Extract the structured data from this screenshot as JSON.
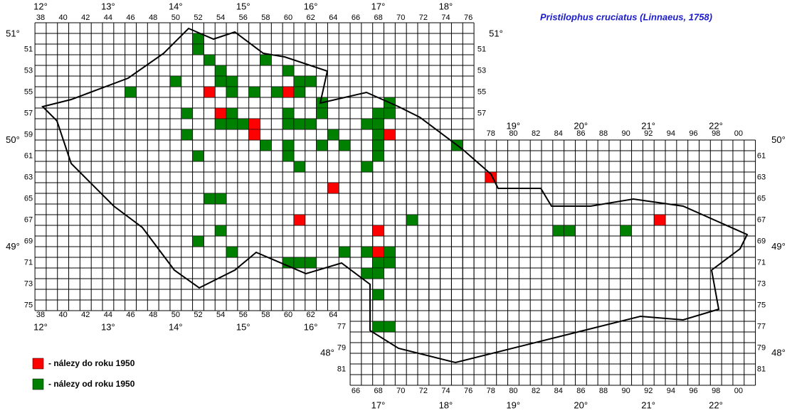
{
  "title": "Pristilophus cruciatus (Linnaeus, 1758)",
  "column_labels_top_west": [
    38,
    40,
    42,
    44,
    46,
    48,
    50,
    52,
    54,
    56,
    58,
    60,
    62,
    64,
    66,
    68,
    70,
    72,
    74,
    76
  ],
  "column_labels_bottom_west": [
    38,
    40,
    42,
    44,
    46,
    48,
    50,
    52,
    54,
    56,
    58,
    60,
    62,
    64
  ],
  "column_labels_top_east": [
    78,
    80,
    82,
    84,
    86,
    88,
    90,
    92,
    94,
    96,
    98,
    {
      "value": 100,
      "label": "00"
    }
  ],
  "column_labels_bottom_east": [
    66,
    68,
    70,
    72,
    74,
    76,
    78,
    80,
    82,
    84,
    86,
    88,
    90,
    92,
    94,
    96,
    98,
    {
      "value": 100,
      "label": "00"
    }
  ],
  "row_labels_left_west": [
    51,
    53,
    55,
    57,
    59,
    61,
    63,
    65,
    67,
    69,
    71,
    73,
    75
  ],
  "row_labels_right_west": [
    51,
    53,
    55,
    57
  ],
  "row_labels_left_east": [
    77,
    79,
    81
  ],
  "row_labels_right_east": [
    61,
    63,
    65,
    67,
    69,
    71,
    73,
    75,
    77,
    79,
    81
  ],
  "longitude_top_west": [
    {
      "value": 12,
      "label": "12°"
    },
    {
      "value": 13,
      "label": "13°"
    },
    {
      "value": 14,
      "label": "14°"
    },
    {
      "value": 15,
      "label": "15°"
    },
    {
      "value": 16,
      "label": "16°"
    },
    {
      "value": 17,
      "label": "17°"
    },
    {
      "value": 18,
      "label": "18°"
    }
  ],
  "longitude_bottom_west": [
    {
      "value": 12,
      "label": "12°"
    },
    {
      "value": 13,
      "label": "13°"
    },
    {
      "value": 14,
      "label": "14°"
    },
    {
      "value": 15,
      "label": "15°"
    },
    {
      "value": 16,
      "label": "16°"
    }
  ],
  "longitude_top_east": [
    {
      "value": 19,
      "label": "19°"
    },
    {
      "value": 20,
      "label": "20°"
    },
    {
      "value": 21,
      "label": "21°"
    },
    {
      "value": 22,
      "label": "22°"
    }
  ],
  "longitude_bottom_east": [
    {
      "value": 17,
      "label": "17°"
    },
    {
      "value": 18,
      "label": "18°"
    },
    {
      "value": 19,
      "label": "19°"
    },
    {
      "value": 20,
      "label": "20°"
    },
    {
      "value": 21,
      "label": "21°"
    },
    {
      "value": 22,
      "label": "22°"
    }
  ],
  "latitude_left": [
    {
      "value": 51,
      "label": "51°"
    },
    {
      "value": 50,
      "label": "50°"
    },
    {
      "value": 49,
      "label": "49°"
    }
  ],
  "latitude_left_east": [
    {
      "value": 48,
      "label": "48°"
    }
  ],
  "latitude_right_west": [
    {
      "value": 51,
      "label": "51°"
    }
  ],
  "latitude_right_east": [
    {
      "value": 50,
      "label": "50°"
    },
    {
      "value": 49,
      "label": "49°"
    },
    {
      "value": 48,
      "label": "48°"
    }
  ],
  "legend": [
    {
      "label": "- nálezy do roku 1950",
      "color": "#ff0000",
      "squares": [
        [
          53,
          55
        ],
        [
          60,
          55
        ],
        [
          54,
          57
        ],
        [
          57,
          58
        ],
        [
          57,
          59
        ],
        [
          69,
          59
        ],
        [
          78,
          63
        ],
        [
          64,
          64
        ],
        [
          61,
          67
        ],
        [
          68,
          68
        ],
        [
          93,
          67
        ],
        [
          68,
          70
        ]
      ]
    },
    {
      "label": "- nálezy od roku 1950",
      "color": "#008000",
      "squares": [
        [
          52,
          50
        ],
        [
          52,
          51
        ],
        [
          53,
          52
        ],
        [
          58,
          52
        ],
        [
          54,
          53
        ],
        [
          60,
          53
        ],
        [
          54,
          54
        ],
        [
          55,
          54
        ],
        [
          61,
          54
        ],
        [
          62,
          54
        ],
        [
          50,
          54
        ],
        [
          46,
          55
        ],
        [
          55,
          55
        ],
        [
          57,
          55
        ],
        [
          59,
          55
        ],
        [
          61,
          55
        ],
        [
          63,
          56
        ],
        [
          63,
          57
        ],
        [
          69,
          56
        ],
        [
          69,
          57
        ],
        [
          51,
          57
        ],
        [
          55,
          57
        ],
        [
          60,
          57
        ],
        [
          54,
          58
        ],
        [
          55,
          58
        ],
        [
          56,
          58
        ],
        [
          60,
          58
        ],
        [
          61,
          58
        ],
        [
          62,
          58
        ],
        [
          67,
          58
        ],
        [
          68,
          57
        ],
        [
          68,
          58
        ],
        [
          68,
          59
        ],
        [
          68,
          60
        ],
        [
          68,
          61
        ],
        [
          51,
          59
        ],
        [
          64,
          59
        ],
        [
          58,
          60
        ],
        [
          60,
          60
        ],
        [
          60,
          61
        ],
        [
          61,
          62
        ],
        [
          63,
          60
        ],
        [
          65,
          60
        ],
        [
          75,
          60
        ],
        [
          52,
          61
        ],
        [
          67,
          62
        ],
        [
          53,
          65
        ],
        [
          54,
          65
        ],
        [
          71,
          67
        ],
        [
          54,
          68
        ],
        [
          84,
          68
        ],
        [
          85,
          68
        ],
        [
          90,
          68
        ],
        [
          52,
          69
        ],
        [
          55,
          70
        ],
        [
          60,
          71
        ],
        [
          61,
          71
        ],
        [
          62,
          71
        ],
        [
          65,
          70
        ],
        [
          67,
          70
        ],
        [
          69,
          70
        ],
        [
          68,
          71
        ],
        [
          69,
          71
        ],
        [
          67,
          72
        ],
        [
          68,
          72
        ],
        [
          68,
          74
        ],
        [
          68,
          77
        ],
        [
          69,
          77
        ]
      ]
    }
  ]
}
